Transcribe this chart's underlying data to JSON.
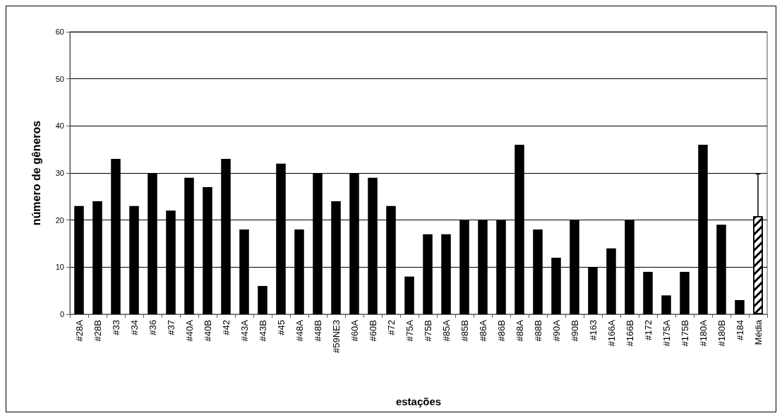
{
  "chart_data": {
    "type": "bar",
    "xlabel": "estações",
    "ylabel": "número de gêneros",
    "categories": [
      "#28A",
      "#28B",
      "#33",
      "#34",
      "#36",
      "#37",
      "#40A",
      "#40B",
      "#42",
      "#43A",
      "#43B",
      "#45",
      "#48A",
      "#48B",
      "#59NE3",
      "#60A",
      "#60B",
      "#72",
      "#75A",
      "#75B",
      "#85A",
      "#85B",
      "#86A",
      "#86B",
      "#88A",
      "#88B",
      "#90A",
      "#90B",
      "#163",
      "#166A",
      "#166B",
      "#172",
      "#175A",
      "#175B",
      "#180A",
      "#180B",
      "#184",
      "Média"
    ],
    "values": [
      23,
      24,
      33,
      23,
      30,
      22,
      29,
      27,
      33,
      18,
      6,
      32,
      18,
      30,
      24,
      30,
      29,
      23,
      8,
      17,
      17,
      20,
      20,
      20,
      36,
      18,
      12,
      20,
      10,
      14,
      20,
      9,
      4,
      9,
      36,
      19,
      3,
      20.8
    ],
    "errors": [
      null,
      null,
      null,
      null,
      null,
      null,
      null,
      null,
      null,
      null,
      null,
      null,
      null,
      null,
      null,
      null,
      null,
      null,
      null,
      null,
      null,
      null,
      null,
      null,
      null,
      null,
      null,
      null,
      null,
      null,
      null,
      null,
      null,
      null,
      null,
      null,
      null,
      [
        20.8,
        29.8
      ]
    ],
    "color": "#000000",
    "ylim": [
      0,
      60
    ],
    "yticks": [
      0,
      10,
      20,
      30,
      40,
      50,
      60
    ],
    "grid": "y"
  }
}
